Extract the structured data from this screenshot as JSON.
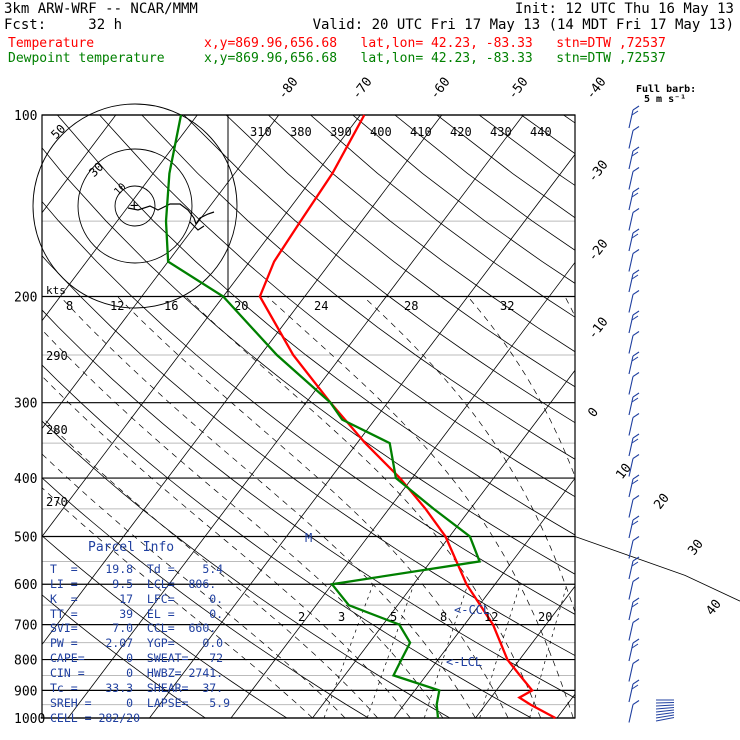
{
  "header": {
    "line1_left": "3km ARW-WRF -- NCAR/MMM",
    "line1_right": "Init: 12 UTC Thu 16 May 13",
    "line2_left": "Fcst:     32 h",
    "line2_right": "Valid: 20 UTC Fri 17 May 13 (14 MDT Fri 17 May 13)",
    "temp_label": "Temperature",
    "temp_info": "x,y=869.96,656.68   lat,lon= 42.23, -83.33   stn=DTW ,72537",
    "dew_label": "Dewpoint temperature",
    "dew_info": "x,y=869.96,656.68   lat,lon= 42.23, -83.33   stn=DTW ,72537"
  },
  "full_barb": "Full barb:",
  "full_barb_units": "5 m s⁻¹",
  "parcel": {
    "title": "Parcel Info",
    "rows": [
      "T  =    19.8  Td =    5.4",
      "LI =     9.5  LCL=  806.",
      "K  =      17  LFC=     0.",
      "TT =      39  EL =     0.",
      "SVI=     7.0  CCL=  660.",
      "PW =    2.07  YGP=    0.0",
      "CAPE=      0  SWEAT=   72",
      "CIN =      0  HWBZ= 2741.",
      "Tc =    33.3  SHEAR=  37.",
      "SREH =     0  LAPSE=   5.9",
      "CELL = 282/20"
    ]
  },
  "chart_data": {
    "type": "line",
    "ylabel": "",
    "xlabel": "",
    "pressure_ticks": [
      "100",
      "200",
      "300",
      "400",
      "500",
      "600",
      "700",
      "800",
      "900",
      "1000"
    ],
    "temp_ticks": [
      "-80",
      "-70",
      "-60",
      "-50",
      "-40",
      "-30",
      "-20",
      "-10",
      "0",
      "10",
      "20",
      "30",
      "40"
    ],
    "theta_labels": [
      "310",
      "380",
      "390",
      "400",
      "410",
      "420",
      "430",
      "440"
    ],
    "mixing_ratio_labels": [
      "2",
      "3",
      "5",
      "8",
      "12",
      "20"
    ],
    "hodo_kts_label": "kts",
    "hodo_ring_labels": [
      "50",
      "30",
      "10"
    ],
    "wind_speed_labels": [
      "8",
      "12",
      "16",
      "20",
      "24",
      "28",
      "32"
    ],
    "left_labels": [
      "290",
      "280",
      "270"
    ],
    "ccl_label": "<-CCL",
    "lcl_label": "<-LCL",
    "m_label": "M",
    "series": [
      {
        "name": "Temperature",
        "color": "#ff0000",
        "points": [
          [
            1000,
            19.8
          ],
          [
            950,
            15.5
          ],
          [
            925,
            13.5
          ],
          [
            900,
            14.4
          ],
          [
            850,
            11.5
          ],
          [
            800,
            8.5
          ],
          [
            700,
            3.5
          ],
          [
            600,
            -3.5
          ],
          [
            500,
            -10.5
          ],
          [
            450,
            -15.5
          ],
          [
            400,
            -21.5
          ],
          [
            350,
            -29
          ],
          [
            300,
            -37
          ],
          [
            250,
            -46
          ],
          [
            200,
            -55.5
          ],
          [
            175,
            -57
          ],
          [
            150,
            -57.5
          ],
          [
            125,
            -58
          ],
          [
            100,
            -59.5
          ]
        ]
      },
      {
        "name": "Dewpoint temperature",
        "color": "#008000",
        "points": [
          [
            1000,
            5.4
          ],
          [
            950,
            4
          ],
          [
            900,
            3
          ],
          [
            850,
            -4
          ],
          [
            800,
            -4.5
          ],
          [
            750,
            -5
          ],
          [
            700,
            -8
          ],
          [
            650,
            -16
          ],
          [
            600,
            -20
          ],
          [
            550,
            -4
          ],
          [
            500,
            -7.5
          ],
          [
            450,
            -14.5
          ],
          [
            400,
            -22
          ],
          [
            350,
            -26
          ],
          [
            320,
            -34
          ],
          [
            300,
            -37
          ],
          [
            250,
            -48
          ],
          [
            200,
            -60
          ],
          [
            175,
            -70
          ],
          [
            150,
            -74
          ],
          [
            125,
            -78
          ],
          [
            100,
            -82
          ]
        ]
      }
    ]
  }
}
